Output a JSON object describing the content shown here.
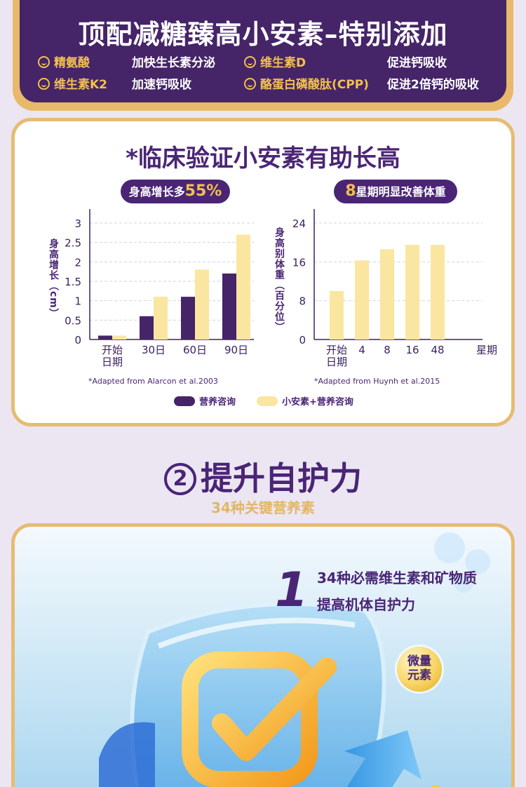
{
  "banner": {
    "title": "顶配减糖臻高小安素–特别添加",
    "features": [
      {
        "name": "精氨酸",
        "desc": "加快生长素分泌"
      },
      {
        "name": "维生素D",
        "desc": "促进钙吸收"
      },
      {
        "name": "维生素K2",
        "desc": "加速钙吸收"
      },
      {
        "name": "酪蛋白磷酸肽(CPP)",
        "desc": "促进2倍钙的吸收"
      }
    ]
  },
  "clinical": {
    "title": "*临床验证小安素有助长高",
    "pill_left_prefix": "身高增长多",
    "pill_left_highlight": "55%",
    "pill_right_highlight": "8",
    "pill_right_suffix": "星期明显改善体重",
    "source_left": "*Adapted from Alarcon et al.2003",
    "source_right": "*Adapted from Huynh et al.2015",
    "legend": [
      "营养咨询",
      "小安素+营养咨询"
    ],
    "colors": {
      "purple": "#452468",
      "yellow": "#fae6a0"
    }
  },
  "chart_data": [
    {
      "type": "bar",
      "ylabel": "身高增长（cm）",
      "categories": [
        "开始日期",
        "30日",
        "60日",
        "90日"
      ],
      "yticks": [
        "3",
        "2.5",
        "2",
        "1.5",
        "1",
        "0.5",
        "0"
      ],
      "ylim": [
        0,
        3
      ],
      "series": [
        {
          "name": "营养咨询",
          "values": [
            0.1,
            0.6,
            1.1,
            1.7
          ]
        },
        {
          "name": "小安素+营养咨询",
          "values": [
            0.1,
            1.1,
            1.8,
            2.7
          ]
        }
      ]
    },
    {
      "type": "bar",
      "ylabel": "身高别体重（百分位）",
      "xlabel": "星期",
      "categories": [
        "开始日期",
        "4",
        "8",
        "16",
        "48"
      ],
      "yticks": [
        "24",
        "16",
        "8",
        "0"
      ],
      "ylim": [
        0,
        24
      ],
      "series": [
        {
          "name": "小安素+营养咨询",
          "values": [
            10,
            16.3,
            18.6,
            19.5,
            19.5
          ]
        }
      ]
    }
  ],
  "section3": {
    "number": "②",
    "title": "提升自护力",
    "subtitle": "34种关键营养素",
    "big_number": "1",
    "line1": "34种必需维生素和矿物质",
    "line2": "提高机体自护力",
    "badge": "微量元素"
  }
}
